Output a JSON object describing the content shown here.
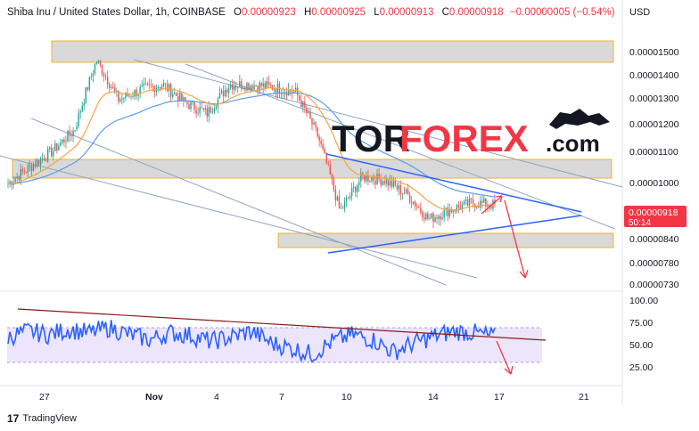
{
  "header": {
    "symbol": "Shiba Inu / United States Dollar, 1h, COINBASE",
    "o_label": "O",
    "o_value": "0.00000923",
    "h_label": "H",
    "h_value": "0.00000925",
    "l_label": "L",
    "l_value": "0.00000913",
    "c_label": "C",
    "c_value": "0.00000918",
    "change": "−0.00000005 (−0.54%)"
  },
  "axis": {
    "currency": "USD"
  },
  "price_badge": {
    "price": "0.00000918",
    "timer": "50:14",
    "color": "#f23645"
  },
  "watermark": {
    "part1": "TOR",
    "part2": "FOREX",
    "part3": ".com",
    "color1": "#131722",
    "color2": "#f23645"
  },
  "branding": {
    "tradingview": "TradingView"
  },
  "colors": {
    "candle_up": "#26a69a",
    "candle_down": "#ef5350",
    "ema_fast": "#f7a440",
    "ema_slow": "#5b9cf0",
    "zone_fill": "#d9d9d9",
    "zone_border": "#f0b429",
    "rsi_line": "#2962ff",
    "rsi_band": "#e7dcfb",
    "trend_blue": "#2962ff",
    "arrow": "#f23645",
    "rsi_trend": "#8b1a1a"
  },
  "chart_data": [
    {
      "type": "candlestick",
      "title": "Shiba Inu / United States Dollar, 1h, COINBASE",
      "x_ticks": [
        "27",
        "Nov",
        "4",
        "7",
        "10",
        "14",
        "17",
        "21"
      ],
      "y_ticks": [
        "0.00001500",
        "0.00001400",
        "0.00001300",
        "0.00001200",
        "0.00001100",
        "0.00001000",
        "0.00000840",
        "0.00000780",
        "0.00000730"
      ],
      "ylim": [
        7.1e-06,
        1.58e-05
      ],
      "y_scale": "log",
      "approx_close_path": [
        {
          "date": "Oct 25",
          "close": 9.8e-06
        },
        {
          "date": "Oct 26",
          "close": 1.03e-05
        },
        {
          "date": "Oct 27",
          "close": 1.08e-05
        },
        {
          "date": "Oct 28",
          "close": 1.15e-05
        },
        {
          "date": "Oct 29",
          "close": 1.42e-05
        },
        {
          "date": "Oct 30",
          "close": 1.26e-05
        },
        {
          "date": "Oct 31",
          "close": 1.3e-05
        },
        {
          "date": "Nov 1",
          "close": 1.32e-05
        },
        {
          "date": "Nov 2",
          "close": 1.25e-05
        },
        {
          "date": "Nov 3",
          "close": 1.21e-05
        },
        {
          "date": "Nov 4",
          "close": 1.32e-05
        },
        {
          "date": "Nov 5",
          "close": 1.32e-05
        },
        {
          "date": "Nov 6",
          "close": 1.31e-05
        },
        {
          "date": "Nov 7",
          "close": 1.29e-05
        },
        {
          "date": "Nov 8",
          "close": 1.13e-05
        },
        {
          "date": "Nov 9",
          "close": 9e-06
        },
        {
          "date": "Nov 10",
          "close": 1e-05
        },
        {
          "date": "Nov 11",
          "close": 9.9e-06
        },
        {
          "date": "Nov 12",
          "close": 9.5e-06
        },
        {
          "date": "Nov 13",
          "close": 8.8e-06
        },
        {
          "date": "Nov 14",
          "close": 9.05e-06
        },
        {
          "date": "Nov 15",
          "close": 9.25e-06
        },
        {
          "date": "Nov 16",
          "close": 9.18e-06
        }
      ],
      "zones": [
        {
          "low": 1.48e-05,
          "high": 1.56e-05
        },
        {
          "low": 1.03e-05,
          "high": 1.085e-05
        },
        {
          "low": 8.25e-06,
          "high": 8.5e-06
        }
      ]
    },
    {
      "type": "line",
      "name": "RSI",
      "y_ticks": [
        "100.00",
        "75.00",
        "50.00",
        "25.00"
      ],
      "ylim": [
        0,
        100
      ],
      "band": [
        30,
        70
      ],
      "approx_values": [
        55,
        62,
        58,
        64,
        60,
        66,
        58,
        52,
        60,
        57,
        50,
        55,
        62,
        48,
        42,
        35,
        50,
        58,
        52,
        38,
        48,
        56,
        62,
        60,
        55
      ]
    }
  ]
}
